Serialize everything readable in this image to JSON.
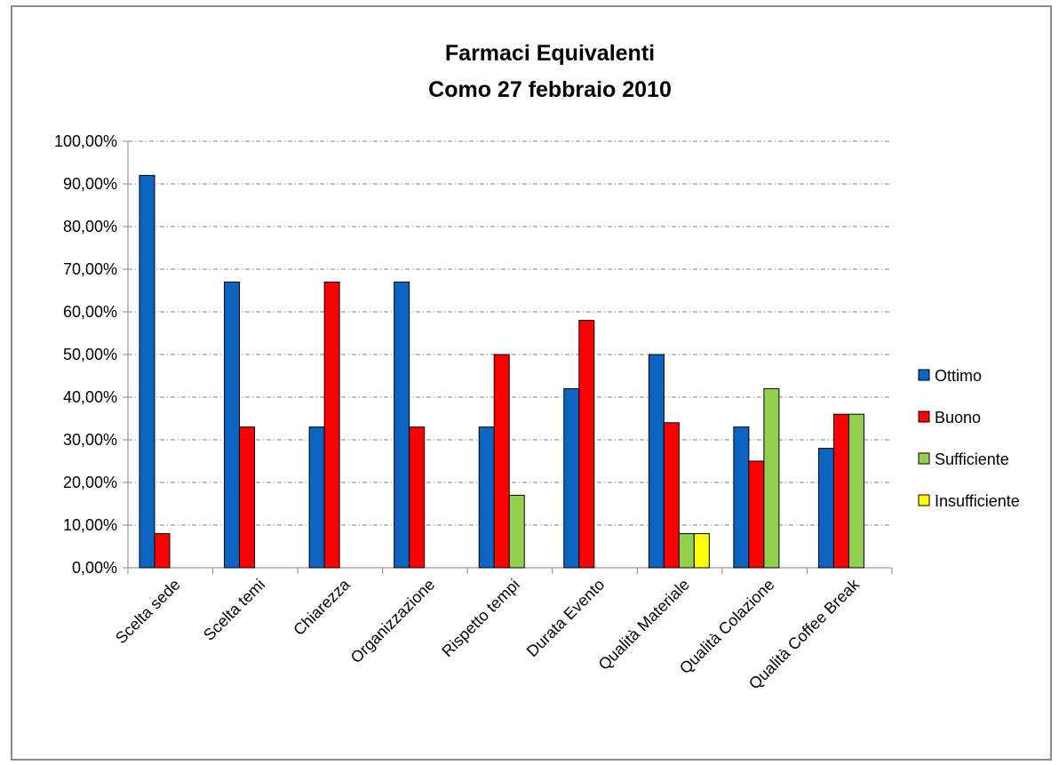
{
  "chart_data": {
    "type": "bar",
    "title": "Farmaci Equivalenti",
    "subtitle": "Como 27 febbraio 2010",
    "xlabel": "",
    "ylabel": "",
    "ylim": [
      0,
      1
    ],
    "ytick_step": 0.1,
    "grid": true,
    "legend_position": "right",
    "categories": [
      "Scelta sede",
      "Scelta temi",
      "Chiarezza",
      "Organizzazione",
      "Rispetto tempi",
      "Durata Evento",
      "Qualità Materiale",
      "Qualità Colazione",
      "Qualità Coffee Break"
    ],
    "series": [
      {
        "name": "Ottimo",
        "color": "#0a64c0",
        "values": [
          0.92,
          0.67,
          0.33,
          0.67,
          0.33,
          0.42,
          0.5,
          0.33,
          0.28
        ]
      },
      {
        "name": "Buono",
        "color": "#ff0000",
        "values": [
          0.08,
          0.33,
          0.67,
          0.33,
          0.5,
          0.58,
          0.34,
          0.25,
          0.36
        ]
      },
      {
        "name": "Sufficiente",
        "color": "#92d050",
        "values": [
          0,
          0,
          0,
          0,
          0.17,
          0,
          0.08,
          0.42,
          0.36
        ]
      },
      {
        "name": "Insufficiente",
        "color": "#ffff00",
        "values": [
          0,
          0,
          0,
          0,
          0,
          0,
          0.08,
          0,
          0
        ]
      }
    ]
  }
}
